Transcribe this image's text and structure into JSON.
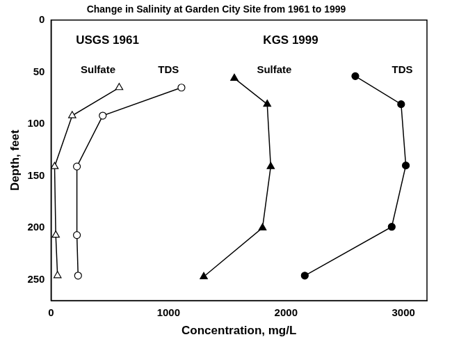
{
  "chart_data": {
    "type": "scatter",
    "title": "Change in Salinity at Garden City Site from 1961 to 1999",
    "x_label": "Concentration, mg/L",
    "y_label": "Depth, feet",
    "xlim": [
      0,
      3200
    ],
    "xticks": [
      0,
      1000,
      2000,
      3000
    ],
    "ylim": [
      0,
      270
    ],
    "yticks": [
      0,
      50,
      100,
      150,
      200,
      250
    ],
    "y_reversed": true,
    "grid": false,
    "series": [
      {
        "name": "Sulfate",
        "color": "#000000",
        "marker": "triangle-open",
        "line_style": "solid",
        "x": [
          580,
          180,
          30,
          40,
          55
        ],
        "values": [
          65,
          92,
          141,
          207,
          246
        ]
      },
      {
        "name": "TDS",
        "color": "#000000",
        "marker": "circle-open",
        "line_style": "solid",
        "x": [
          1110,
          440,
          220,
          220,
          230
        ],
        "values": [
          65,
          92,
          141,
          207,
          246
        ]
      },
      {
        "name": "Sulfate",
        "color": "#000000",
        "marker": "triangle",
        "line_style": "solid",
        "x": [
          1560,
          1840,
          1870,
          1800,
          1300
        ],
        "values": [
          56,
          81,
          141,
          200,
          247
        ]
      },
      {
        "name": "TDS",
        "color": "#000000",
        "marker": "circle",
        "line_style": "solid",
        "x": [
          2590,
          2980,
          3020,
          2900,
          2160
        ],
        "values": [
          54,
          81,
          140,
          199,
          246
        ]
      }
    ],
    "annotations": [
      {
        "text": "USGS 1961",
        "x": 480,
        "y": 20
      },
      {
        "text": "KGS 1999",
        "x": 2040,
        "y": 20
      },
      {
        "text": "Sulfate",
        "x": 400,
        "y": 48
      },
      {
        "text": "TDS",
        "x": 1000,
        "y": 48
      },
      {
        "text": "Sulfate",
        "x": 1900,
        "y": 48
      },
      {
        "text": "TDS",
        "x": 2990,
        "y": 48
      }
    ]
  }
}
